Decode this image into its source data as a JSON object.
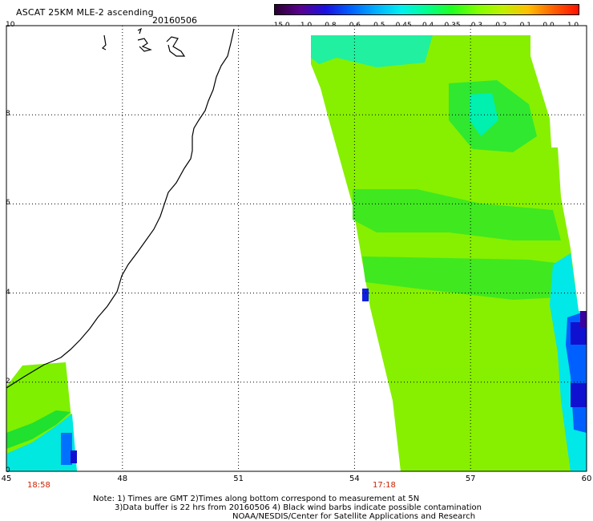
{
  "header": {
    "title": "ASCAT 25KM MLE-2 ascending",
    "date": "20160506"
  },
  "colorbar": {
    "labels": [
      "-15.0",
      "-1.0",
      "-0.8",
      "-0.6",
      "-0.5",
      "-0.45",
      "-0.4",
      "-0.35",
      "-0.3",
      "-0.2",
      "-0.1",
      "0.0",
      "1.0"
    ],
    "colors": [
      "#2a0030",
      "#5a0090",
      "#1a10e0",
      "#0060ff",
      "#00b0ff",
      "#00f0f0",
      "#00ff90",
      "#20ff20",
      "#80ff00",
      "#c0f000",
      "#ffc000",
      "#ff6000",
      "#ff1000"
    ]
  },
  "axes": {
    "y_ticks": [
      "10",
      "8",
      "6",
      "4",
      "2",
      "0"
    ],
    "x_ticks": [
      "45",
      "48",
      "51",
      "54",
      "57",
      "60"
    ]
  },
  "times": {
    "left": "18:58",
    "right": "17:18"
  },
  "notes": {
    "line1": "Note: 1) Times are GMT 2)Times along bottom correspond to measurement at 5N",
    "line2": "3)Data buffer is 22 hrs from 20160506 4) Black wind barbs indicate possible contamination",
    "line3": "NOAA/NESDIS/Center for Satellite Applications and Research"
  },
  "palette": {
    "main_green": "#88f000",
    "mid_green": "#40e800",
    "bright_green": "#10e030",
    "cyan": "#00f0e0",
    "blue": "#0070ff",
    "dark_blue": "#1010d0"
  }
}
